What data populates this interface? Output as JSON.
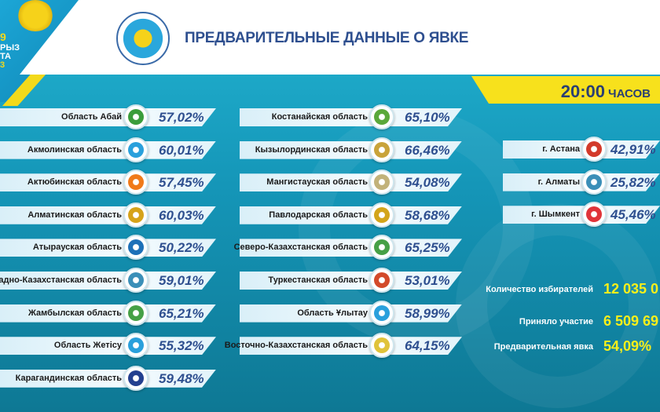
{
  "header": {
    "title": "ПРЕДВАРИТЕЛЬНЫЕ ДАННЫЕ О ЯВКЕ",
    "time": "20:00",
    "time_unit": "ЧАСОВ",
    "corner_fragments": [
      "9",
      "РЫЗ",
      "ТА",
      "3"
    ]
  },
  "colors": {
    "accent_yellow": "#f7e11c",
    "title_blue": "#2e4f8f",
    "bg_teal": "#1596b8"
  },
  "col1": [
    {
      "name": "Область Абай",
      "value": "57,02%",
      "emblem": "abai-emblem"
    },
    {
      "name": "Акмолинская область",
      "value": "60,01%",
      "emblem": "aqmola-emblem"
    },
    {
      "name": "Актюбинская область",
      "value": "57,45%",
      "emblem": "aktobe-emblem"
    },
    {
      "name": "Алматинская область",
      "value": "60,03%",
      "emblem": "almaty-region-emblem"
    },
    {
      "name": "Атырауская  область",
      "value": "50,22%",
      "emblem": "atyrau-emblem"
    },
    {
      "name": "Западно-Казахстанская область",
      "value": "59,01%",
      "emblem": "wko-emblem"
    },
    {
      "name": "Жамбылская область",
      "value": "65,21%",
      "emblem": "zhambyl-emblem"
    },
    {
      "name": "Область Жетісу",
      "value": "55,32%",
      "emblem": "zhetisu-emblem"
    },
    {
      "name": "Карагандинская область",
      "value": "59,48%",
      "emblem": "karaganda-emblem"
    }
  ],
  "col2": [
    {
      "name": "Костанайская область",
      "value": "65,10%",
      "emblem": "kostanay-emblem"
    },
    {
      "name": "Кызылординская область",
      "value": "66,46%",
      "emblem": "kyzylorda-emblem"
    },
    {
      "name": "Мангистауская  область",
      "value": "54,08%",
      "emblem": "mangystau-emblem"
    },
    {
      "name": "Павлодарская область",
      "value": "58,68%",
      "emblem": "pavlodar-emblem"
    },
    {
      "name": "Северо-Казахстанская область",
      "value": "65,25%",
      "emblem": "nko-emblem"
    },
    {
      "name": "Туркестанская область",
      "value": "53,01%",
      "emblem": "turkestan-emblem"
    },
    {
      "name": "Область Ұлытау",
      "value": "58,99%",
      "emblem": "ulytau-emblem"
    },
    {
      "name": "Восточно-Казахстанская область",
      "value": "64,15%",
      "emblem": "eko-emblem"
    }
  ],
  "col3": [
    {
      "name": "г. Астана",
      "value": "42,91%",
      "emblem": "astana-emblem"
    },
    {
      "name": "г. Алматы",
      "value": "25,82%",
      "emblem": "almaty-emblem"
    },
    {
      "name": "г. Шымкент",
      "value": "45,46%",
      "emblem": "shymkent-emblem"
    }
  ],
  "stats": [
    {
      "label": "Количество избирателей",
      "value": "12 035 0"
    },
    {
      "label": "Приняло участие",
      "value": "6 509 69"
    },
    {
      "label": "Предварительная явка",
      "value": "54,09%"
    }
  ]
}
